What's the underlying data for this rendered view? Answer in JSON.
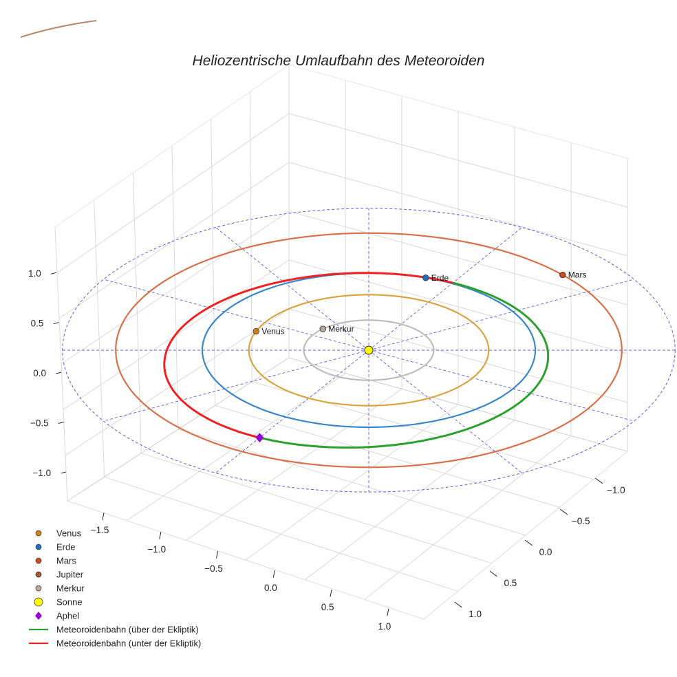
{
  "chart_data": {
    "type": "line3d",
    "title": "Heliozentrische Umlaufbahn des Meteoroiden",
    "xlim": [
      -1.5,
      1.5
    ],
    "ylim": [
      -1.5,
      1.5
    ],
    "zlim": [
      -1.2,
      1.2
    ],
    "x_ticks": [
      "−1.5",
      "−1.0",
      "−0.5",
      "0.0",
      "0.5",
      "1.0"
    ],
    "x_tick_values": [
      -1.5,
      -1.0,
      -0.5,
      0.0,
      0.5,
      1.0
    ],
    "y_ticks": [
      "−1.0",
      "−0.5",
      "0.0",
      "0.5",
      "1.0"
    ],
    "y_tick_values": [
      -1.0,
      -0.5,
      0.0,
      0.5,
      1.0
    ],
    "z_ticks": [
      "−1.0",
      "−0.5",
      "0.0",
      "0.5",
      "1.0"
    ],
    "z_tick_values": [
      -1.0,
      -0.5,
      0.0,
      0.5,
      1.0
    ],
    "grid": true,
    "legend_position": "bottom-left",
    "planets": [
      {
        "name": "Venus",
        "legend": "Venus",
        "label": "Venus",
        "color": "#d17f1e",
        "radius": 0.72,
        "angle_deg": 200
      },
      {
        "name": "Erde",
        "legend": "Erde",
        "label": "Erde",
        "color": "#1f6fc1",
        "radius": 1.0,
        "angle_deg": 290
      },
      {
        "name": "Mars",
        "legend": "Mars",
        "label": "Mars",
        "color": "#cc4a1b",
        "radius": 1.52,
        "angle_deg": 320
      },
      {
        "name": "Jupiter",
        "legend": "Jupiter",
        "label": "",
        "color": "#a0522d"
      },
      {
        "name": "Merkur",
        "legend": "Merkur",
        "label": "Merkur",
        "color": "#b8a89a",
        "radius": 0.39,
        "angle_deg": 225
      }
    ],
    "orbits": [
      {
        "name": "Merkur",
        "radius": 0.39,
        "color": "#bdbdbd"
      },
      {
        "name": "Venus",
        "radius": 0.72,
        "color": "#d9a441"
      },
      {
        "name": "Erde",
        "radius": 1.0,
        "color": "#3a86c8"
      },
      {
        "name": "Mars",
        "radius": 1.52,
        "color": "#d9704a"
      }
    ],
    "sun": {
      "legend": "Sonne",
      "color": "#ffff00"
    },
    "aphel": {
      "legend": "Aphel",
      "color": "#9400d3",
      "angle_deg": 120
    },
    "meteoroid": {
      "semi_major_axis": 1.16,
      "eccentricity": 0.13,
      "perihelion_angle_deg": 300,
      "inclination_deg": 2,
      "above": {
        "legend": "Meteoroidenbahn (über der Ekliptik)",
        "color": "#2ca02c"
      },
      "below": {
        "legend": "Meteoroidenbahn (unter der Ekliptik)",
        "color": "#ee2222"
      }
    }
  }
}
